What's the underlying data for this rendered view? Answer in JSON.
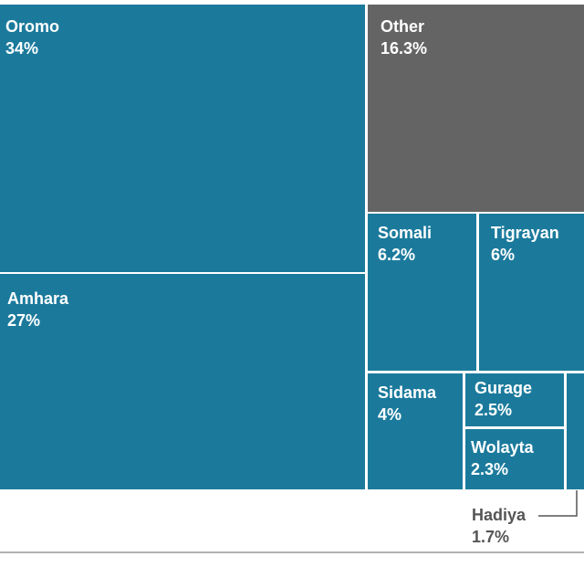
{
  "chart_data": {
    "type": "treemap",
    "categories": [
      "Oromo",
      "Amhara",
      "Other",
      "Somali",
      "Tigrayan",
      "Sidama",
      "Gurage",
      "Wolayta",
      "Hadiya"
    ],
    "values": [
      34,
      27,
      16.3,
      6.2,
      6,
      4,
      2.5,
      2.3,
      1.7
    ],
    "value_labels": [
      "34%",
      "27%",
      "16.3%",
      "6.2%",
      "6%",
      "4%",
      "2.5%",
      "2.3%",
      "1.7%"
    ],
    "colors": [
      "#1b7a9c",
      "#1b7a9c",
      "#646464",
      "#1b7a9c",
      "#1b7a9c",
      "#1b7a9c",
      "#1b7a9c",
      "#1b7a9c",
      "#1b7a9c"
    ]
  }
}
